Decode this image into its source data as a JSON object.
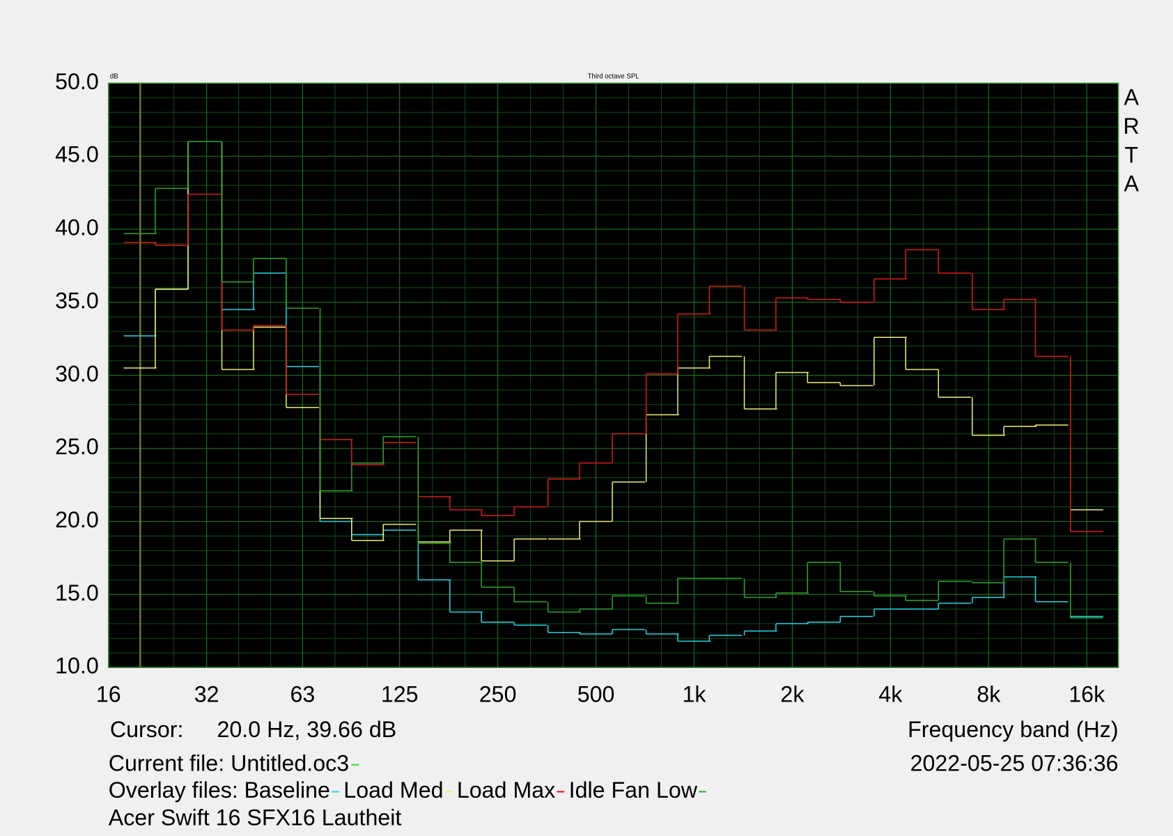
{
  "chart_data": {
    "type": "step",
    "title": "Third octave SPL",
    "y_unit": "dB",
    "side_label": "ARTA",
    "x_label": "Frequency band (Hz)",
    "log_x": true,
    "grid": true,
    "xlim": [
      16,
      20000
    ],
    "ylim": [
      10,
      50
    ],
    "xticks": [
      16,
      32,
      63,
      125,
      250,
      500,
      {
        "value": 1000,
        "label": "1k"
      },
      {
        "value": 2000,
        "label": "2k"
      },
      {
        "value": 4000,
        "label": "4k"
      },
      {
        "value": 8000,
        "label": "8k"
      },
      {
        "value": 16000,
        "label": "16k"
      }
    ],
    "yticks": [
      {
        "value": 10,
        "label": "10.0"
      },
      {
        "value": 15,
        "label": "15.0"
      },
      {
        "value": 20,
        "label": "20.0"
      },
      {
        "value": 25,
        "label": "25.0"
      },
      {
        "value": 30,
        "label": "30.0"
      },
      {
        "value": 35,
        "label": "35.0"
      },
      {
        "value": 40,
        "label": "40.0"
      },
      {
        "value": 45,
        "label": "45.0"
      },
      {
        "value": 50,
        "label": "50.0"
      }
    ],
    "x": [
      20,
      25,
      31.5,
      40,
      50,
      63,
      80,
      100,
      125,
      160,
      200,
      250,
      315,
      400,
      500,
      630,
      800,
      1000,
      1250,
      1600,
      2000,
      2500,
      3150,
      4000,
      5000,
      6300,
      8000,
      10000,
      12500,
      16000
    ],
    "series": [
      {
        "name": "Baseline",
        "color": "#22d8e8",
        "values": [
          32.7,
          35.9,
          46.0,
          34.5,
          37.0,
          30.6,
          20.0,
          19.1,
          19.4,
          16.0,
          13.8,
          13.1,
          12.9,
          12.4,
          12.3,
          12.6,
          12.3,
          11.8,
          12.2,
          12.5,
          13.0,
          13.1,
          13.5,
          14.0,
          14.0,
          14.4,
          14.8,
          16.2,
          14.5,
          13.5
        ]
      },
      {
        "name": "Load Med",
        "color": "#f0f070",
        "values": [
          30.5,
          35.9,
          46.0,
          30.4,
          33.3,
          27.8,
          20.2,
          18.7,
          19.8,
          18.6,
          19.4,
          17.3,
          18.8,
          18.8,
          20.0,
          22.7,
          27.3,
          30.5,
          31.3,
          27.7,
          30.2,
          29.5,
          29.3,
          32.6,
          30.4,
          28.5,
          25.9,
          26.5,
          26.6,
          20.8
        ]
      },
      {
        "name": "Load Max",
        "color": "#e01818",
        "values": [
          39.1,
          38.9,
          42.4,
          33.1,
          33.4,
          28.7,
          25.6,
          23.9,
          25.4,
          21.7,
          20.8,
          20.4,
          21.0,
          22.9,
          24.0,
          26.0,
          30.1,
          34.2,
          36.1,
          33.1,
          35.3,
          35.2,
          35.0,
          36.6,
          38.6,
          37.0,
          34.5,
          35.2,
          31.3,
          19.3
        ]
      },
      {
        "name": "Idle Fan Low",
        "color": "#2ea82e",
        "values": [
          39.7,
          42.8,
          46.0,
          36.4,
          38.0,
          34.6,
          22.1,
          24.0,
          25.8,
          18.5,
          17.2,
          15.5,
          14.5,
          13.8,
          14.0,
          14.9,
          14.4,
          16.1,
          16.1,
          14.8,
          15.1,
          17.2,
          15.2,
          14.9,
          14.6,
          15.9,
          15.8,
          18.8,
          17.2,
          13.4
        ]
      }
    ],
    "cursor_x": 20,
    "cursor_color": "#c8b400",
    "cursor_label": "Cursor:",
    "cursor_text": "20.0 Hz, 39.66 dB",
    "current_file_label": "Current file: Untitled.oc3",
    "current_file_color": "#30e030",
    "timestamp": "2022-05-25  07:36:36",
    "overlay_label": "Overlay files:",
    "caption": "Acer Swift 16 SFX16 Lautheit"
  }
}
